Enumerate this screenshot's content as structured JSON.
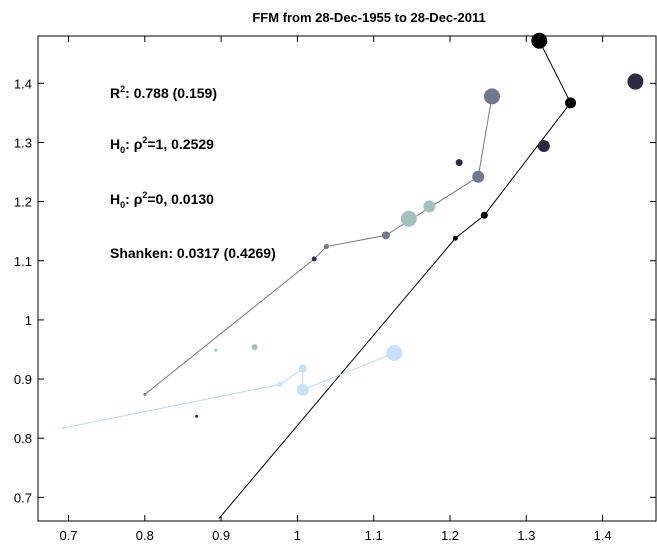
{
  "chart_data": {
    "type": "scatter",
    "title": "FFM from 28-Dec-1955 to 28-Dec-2011",
    "xlabel": "",
    "ylabel": "",
    "xlim": [
      0.66,
      1.47
    ],
    "ylim": [
      0.66,
      1.48
    ],
    "x_ticks": [
      0.7,
      0.8,
      0.9,
      1,
      1.1,
      1.2,
      1.3,
      1.4
    ],
    "x_tick_labels": [
      "0.7",
      "0.8",
      "0.9",
      "1",
      "1.1",
      "1.2",
      "1.3",
      "1.4"
    ],
    "y_ticks": [
      0.7,
      0.8,
      0.9,
      1,
      1.1,
      1.2,
      1.3,
      1.4
    ],
    "y_tick_labels": [
      "0.7",
      "0.8",
      "0.9",
      "1",
      "1.1",
      "1.2",
      "1.3",
      "1.4"
    ],
    "grid": false,
    "annotations": {
      "r2_prefix": "R",
      "r2_sup": "2",
      "r2_rest": ": 0.788 (0.159)",
      "h1_prefix": "H",
      "h1_sub": "0",
      "h1_mid": ": ρ",
      "h1_sup": "2",
      "h1_rest": "=1, 0.2529",
      "h0_prefix": "H",
      "h0_sub": "0",
      "h0_mid": ": ρ",
      "h0_sup": "2",
      "h0_rest": "=0,  0.0130",
      "shanken": "Shanken: 0.0317 (0.4269)"
    },
    "lines": [
      {
        "color": "#000000",
        "width": 1,
        "points": [
          [
            0.897,
            0.664
          ],
          [
            1.207,
            1.138
          ],
          [
            1.245,
            1.177
          ],
          [
            1.358,
            1.367
          ],
          [
            1.317,
            1.472
          ]
        ]
      },
      {
        "color": "#7a7a7a",
        "width": 1,
        "points": [
          [
            0.8,
            0.874
          ],
          [
            1.022,
            1.103
          ],
          [
            1.038,
            1.124
          ],
          [
            1.116,
            1.143
          ],
          [
            1.237,
            1.242
          ],
          [
            1.255,
            1.378
          ]
        ]
      },
      {
        "color": "#bcd8ee",
        "width": 1,
        "points": [
          [
            0.693,
            0.817
          ],
          [
            0.977,
            0.891
          ],
          [
            1.007,
            0.918
          ],
          [
            1.007,
            0.882
          ],
          [
            1.127,
            0.944
          ]
        ]
      }
    ],
    "points": [
      {
        "x": 1.317,
        "y": 1.472,
        "r": 8,
        "color": "#000000"
      },
      {
        "x": 1.443,
        "y": 1.403,
        "r": 8,
        "color": "#2a2a42"
      },
      {
        "x": 1.358,
        "y": 1.367,
        "r": 5.5,
        "color": "#000000"
      },
      {
        "x": 1.255,
        "y": 1.378,
        "r": 8,
        "color": "#6e7a8c"
      },
      {
        "x": 1.323,
        "y": 1.294,
        "r": 6,
        "color": "#2a2a42"
      },
      {
        "x": 1.212,
        "y": 1.266,
        "r": 3.5,
        "color": "#2a2a42"
      },
      {
        "x": 1.237,
        "y": 1.242,
        "r": 6,
        "color": "#6e7a8c"
      },
      {
        "x": 1.173,
        "y": 1.192,
        "r": 6,
        "color": "#a4c0c0"
      },
      {
        "x": 1.146,
        "y": 1.171,
        "r": 8,
        "color": "#a4c0c0"
      },
      {
        "x": 1.245,
        "y": 1.177,
        "r": 3.5,
        "color": "#000000"
      },
      {
        "x": 1.116,
        "y": 1.143,
        "r": 4,
        "color": "#6e7a8c"
      },
      {
        "x": 1.207,
        "y": 1.138,
        "r": 2.5,
        "color": "#000000"
      },
      {
        "x": 1.038,
        "y": 1.124,
        "r": 2.5,
        "color": "#6e7a8c"
      },
      {
        "x": 1.022,
        "y": 1.103,
        "r": 2.5,
        "color": "#2a2a42"
      },
      {
        "x": 0.944,
        "y": 0.954,
        "r": 3,
        "color": "#a4c0c0"
      },
      {
        "x": 0.893,
        "y": 0.949,
        "r": 1.5,
        "color": "#a4c0c0"
      },
      {
        "x": 1.127,
        "y": 0.944,
        "r": 8,
        "color": "#c8e0f8"
      },
      {
        "x": 1.007,
        "y": 0.918,
        "r": 4,
        "color": "#c8e0f8"
      },
      {
        "x": 0.977,
        "y": 0.891,
        "r": 2.5,
        "color": "#c8e0f8"
      },
      {
        "x": 1.007,
        "y": 0.882,
        "r": 6,
        "color": "#c8e0f8"
      },
      {
        "x": 0.8,
        "y": 0.874,
        "r": 1.5,
        "color": "#6e7a8c"
      },
      {
        "x": 0.868,
        "y": 0.837,
        "r": 1.5,
        "color": "#2a2a42"
      },
      {
        "x": 0.693,
        "y": 0.817,
        "r": 1.5,
        "color": "#c8e0f8"
      }
    ]
  }
}
